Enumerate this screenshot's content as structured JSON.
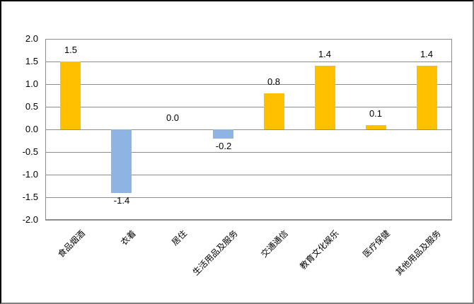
{
  "window": {
    "background_color": "#FFFFFF",
    "frame_border_dark": "#000000",
    "frame_border_light": "#7F7F7F"
  },
  "chart_data": {
    "type": "bar",
    "title": "",
    "xlabel": "",
    "ylabel": "",
    "categories": [
      "食品烟酒",
      "衣着",
      "居住",
      "生活用品及服务",
      "交通通信",
      "教育文化娱乐",
      "医疗保健",
      "其他用品及服务"
    ],
    "values": [
      1.5,
      -1.4,
      0.0,
      -0.2,
      0.8,
      1.4,
      0.1,
      1.4
    ],
    "data_labels": [
      "1.5",
      "-1.4",
      "0.0",
      "-0.2",
      "0.8",
      "1.4",
      "0.1",
      "1.4"
    ],
    "ylim": [
      -2.0,
      2.0
    ],
    "ytick_step": 0.5,
    "yticks": [
      "2.0",
      "1.5",
      "1.0",
      "0.5",
      "0.0",
      "-0.5",
      "-1.0",
      "-1.5",
      "-2.0"
    ],
    "grid": true,
    "legend_position": "none",
    "x_label_rotation_deg": 45,
    "colors": {
      "positive_bar": "#FFC000",
      "negative_bar": "#8DB4E2",
      "gridline": "#8C8C8C",
      "text": "#000000"
    }
  }
}
